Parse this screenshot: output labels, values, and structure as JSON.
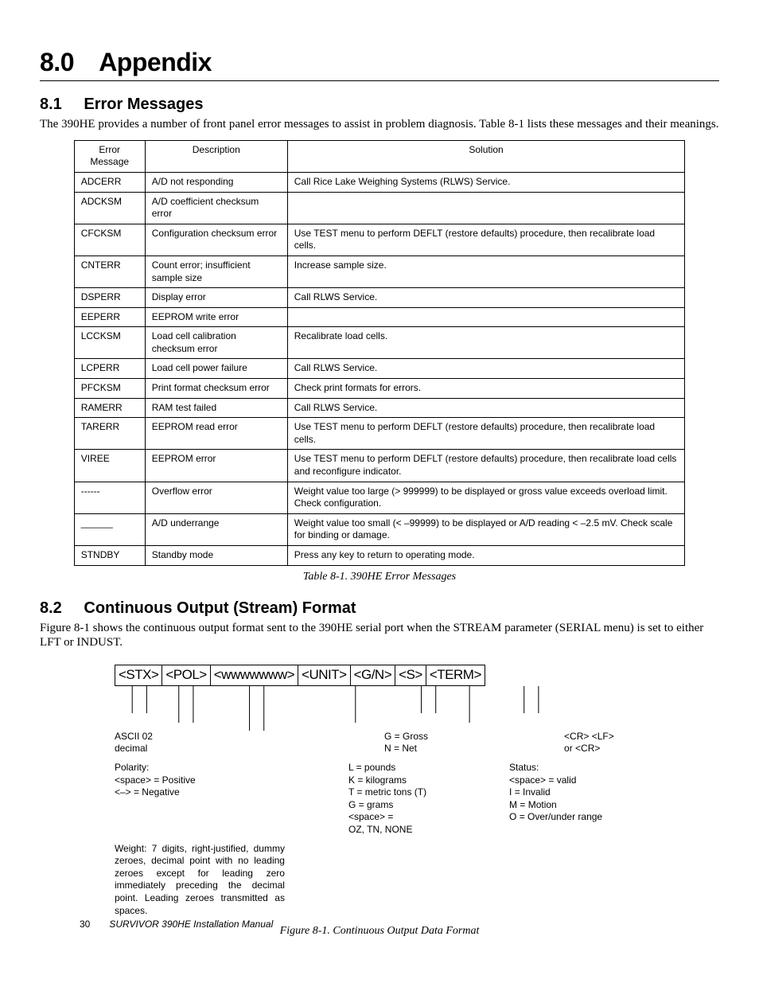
{
  "chapter": {
    "num": "8.0",
    "title": "Appendix"
  },
  "sections": {
    "s81": {
      "num": "8.1",
      "title": "Error Messages",
      "intro": "The 390HE provides a number of front panel error messages to assist in problem diagnosis. Table 8-1 lists these messages and their meanings."
    },
    "s82": {
      "num": "8.2",
      "title": "Continuous Output (Stream) Format",
      "intro": "Figure 8-1 shows the continuous output format sent to the 390HE serial port when the STREAM parameter (SERIAL menu) is set to either LFT or INDUST."
    }
  },
  "table": {
    "caption": "Table 8-1. 390HE Error Messages",
    "columns": [
      "Error Message",
      "Description",
      "Solution"
    ],
    "rows": [
      [
        "ADCERR",
        "A/D not responding",
        "Call Rice Lake Weighing Systems (RLWS) Service."
      ],
      [
        "ADCKSM",
        "A/D coefficient checksum error",
        ""
      ],
      [
        "CFCKSM",
        "Configuration checksum error",
        "Use TEST menu to perform DEFLT (restore defaults) procedure, then recalibrate load cells."
      ],
      [
        "CNTERR",
        "Count error; insufficient sample size",
        "Increase sample size."
      ],
      [
        "DSPERR",
        "Display error",
        "Call RLWS Service."
      ],
      [
        "EEPERR",
        "EEPROM write error",
        ""
      ],
      [
        "LCCKSM",
        "Load cell calibration checksum error",
        "Recalibrate load cells."
      ],
      [
        "LCPERR",
        "Load cell power failure",
        "Call RLWS Service."
      ],
      [
        "PFCKSM",
        "Print format checksum error",
        "Check print formats for errors."
      ],
      [
        "RAMERR",
        "RAM test failed",
        "Call RLWS Service."
      ],
      [
        "TARERR",
        "EEPROM read error",
        "Use TEST menu to perform DEFLT (restore defaults) procedure, then recalibrate load cells."
      ],
      [
        "VIREE",
        "EEPROM error",
        "Use TEST menu to perform DEFLT (restore defaults) procedure, then recalibrate load cells and reconfigure indicator."
      ],
      [
        "------",
        "Overflow error",
        "Weight value too large (> 999999) to be displayed or gross value exceeds overload limit. Check configuration."
      ],
      [
        "______",
        "A/D underrange",
        "Weight value too small (< –99999) to be displayed or A/D reading < –2.5 mV. Check scale for binding or damage."
      ],
      [
        "STNDBY",
        "Standby mode",
        "Press any key to return to operating mode."
      ]
    ]
  },
  "figure": {
    "caption": "Figure 8-1. Continuous Output Data Format",
    "tokens": [
      "<STX>",
      "<POL>",
      "<wwwwwww>",
      "<UNIT>",
      "<G/N>",
      "<S>",
      "<TERM>"
    ],
    "stx": {
      "l1": "ASCII 02",
      "l2": "decimal"
    },
    "pol": {
      "head": "Polarity:",
      "l1": "<space> = Positive",
      "l2": "<–> = Negative"
    },
    "weight": "Weight: 7 digits, right-justified, dummy zeroes, decimal point with no leading zeroes except for leading zero immediately preceding the decimal point. Leading zeroes transmitted as spaces.",
    "unit": {
      "l1": "L = pounds",
      "l2": "K = kilograms",
      "l3": "T = metric tons (T)",
      "l4": "G = grams",
      "l5": "<space> =",
      "l6": "   OZ, TN, NONE"
    },
    "gn": {
      "l1": "G = Gross",
      "l2": "N = Net"
    },
    "status": {
      "head": "Status:",
      "l1": "<space> = valid",
      "l2": "I = Invalid",
      "l3": "M = Motion",
      "l4": "O = Over/under range"
    },
    "term": {
      "l1": "<CR> <LF>",
      "l2": "or <CR>"
    }
  },
  "footer": {
    "page": "30",
    "manual": "SURVIVOR 390HE Installation Manual"
  }
}
